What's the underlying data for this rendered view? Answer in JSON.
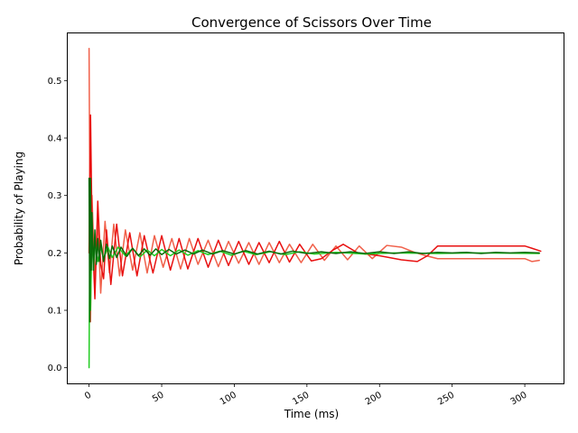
{
  "chart_data": {
    "type": "line",
    "title": "Convergence of Scissors Over Time",
    "xlabel": "Time (ms)",
    "ylabel": "Probability of Playing",
    "xlim": [
      -15,
      327
    ],
    "ylim": [
      -0.028,
      0.583
    ],
    "xticks": [
      0,
      50,
      100,
      150,
      200,
      250,
      300
    ],
    "xtick_labels": [
      "0",
      "50",
      "100",
      "150",
      "200",
      "250",
      "300"
    ],
    "xtick_rotation": 30,
    "yticks": [
      0.0,
      0.1,
      0.2,
      0.3,
      0.4,
      0.5
    ],
    "ytick_labels": [
      "0.0",
      "0.1",
      "0.2",
      "0.3",
      "0.4",
      "0.5"
    ],
    "grid": false,
    "legend": false,
    "series": [
      {
        "color": "#f0604a",
        "points": [
          [
            0,
            0.556
          ],
          [
            1,
            0.08
          ],
          [
            2,
            0.3
          ],
          [
            4,
            0.15
          ],
          [
            6,
            0.26
          ],
          [
            8,
            0.13
          ],
          [
            11,
            0.255
          ],
          [
            14,
            0.165
          ],
          [
            17,
            0.25
          ],
          [
            21,
            0.16
          ],
          [
            25,
            0.24
          ],
          [
            30,
            0.17
          ],
          [
            35,
            0.235
          ],
          [
            40,
            0.165
          ],
          [
            45,
            0.23
          ],
          [
            51,
            0.175
          ],
          [
            57,
            0.225
          ],
          [
            63,
            0.172
          ],
          [
            69,
            0.225
          ],
          [
            75,
            0.18
          ],
          [
            82,
            0.222
          ],
          [
            89,
            0.176
          ],
          [
            96,
            0.22
          ],
          [
            103,
            0.182
          ],
          [
            110,
            0.218
          ],
          [
            117,
            0.18
          ],
          [
            124,
            0.218
          ],
          [
            131,
            0.183
          ],
          [
            138,
            0.215
          ],
          [
            146,
            0.183
          ],
          [
            154,
            0.215
          ],
          [
            162,
            0.187
          ],
          [
            170,
            0.212
          ],
          [
            178,
            0.188
          ],
          [
            186,
            0.212
          ],
          [
            195,
            0.19
          ],
          [
            205,
            0.213
          ],
          [
            215,
            0.21
          ],
          [
            225,
            0.2
          ],
          [
            232,
            0.195
          ],
          [
            240,
            0.19
          ],
          [
            260,
            0.19
          ],
          [
            300,
            0.19
          ],
          [
            305,
            0.185
          ],
          [
            310,
            0.187
          ]
        ]
      },
      {
        "color": "#e81010",
        "points": [
          [
            0,
            0.2
          ],
          [
            1,
            0.44
          ],
          [
            2,
            0.25
          ],
          [
            4,
            0.12
          ],
          [
            6,
            0.29
          ],
          [
            8,
            0.18
          ],
          [
            10,
            0.155
          ],
          [
            12,
            0.24
          ],
          [
            15,
            0.145
          ],
          [
            19,
            0.25
          ],
          [
            23,
            0.16
          ],
          [
            28,
            0.235
          ],
          [
            33,
            0.16
          ],
          [
            38,
            0.23
          ],
          [
            44,
            0.165
          ],
          [
            50,
            0.23
          ],
          [
            56,
            0.17
          ],
          [
            62,
            0.225
          ],
          [
            68,
            0.172
          ],
          [
            75,
            0.225
          ],
          [
            82,
            0.175
          ],
          [
            89,
            0.222
          ],
          [
            96,
            0.178
          ],
          [
            103,
            0.22
          ],
          [
            110,
            0.18
          ],
          [
            117,
            0.218
          ],
          [
            124,
            0.183
          ],
          [
            131,
            0.22
          ],
          [
            138,
            0.184
          ],
          [
            145,
            0.215
          ],
          [
            153,
            0.186
          ],
          [
            160,
            0.19
          ],
          [
            168,
            0.205
          ],
          [
            175,
            0.215
          ],
          [
            185,
            0.2
          ],
          [
            200,
            0.195
          ],
          [
            215,
            0.188
          ],
          [
            226,
            0.185
          ],
          [
            233,
            0.195
          ],
          [
            240,
            0.212
          ],
          [
            250,
            0.212
          ],
          [
            300,
            0.212
          ],
          [
            305,
            0.208
          ],
          [
            311,
            0.203
          ]
        ]
      },
      {
        "color": "#22cc22",
        "points": [
          [
            0,
            0.0
          ],
          [
            0.5,
            0.27
          ],
          [
            1,
            0.1
          ],
          [
            2,
            0.24
          ],
          [
            3,
            0.17
          ],
          [
            4,
            0.22
          ],
          [
            6,
            0.185
          ],
          [
            8,
            0.21
          ],
          [
            10,
            0.19
          ],
          [
            13,
            0.21
          ],
          [
            16,
            0.192
          ],
          [
            20,
            0.21
          ],
          [
            25,
            0.195
          ],
          [
            30,
            0.208
          ],
          [
            35,
            0.193
          ],
          [
            40,
            0.205
          ],
          [
            45,
            0.195
          ],
          [
            50,
            0.206
          ],
          [
            56,
            0.195
          ],
          [
            62,
            0.205
          ],
          [
            68,
            0.196
          ],
          [
            75,
            0.204
          ],
          [
            82,
            0.197
          ],
          [
            90,
            0.203
          ],
          [
            98,
            0.196
          ],
          [
            106,
            0.203
          ],
          [
            115,
            0.197
          ],
          [
            125,
            0.202
          ],
          [
            135,
            0.197
          ],
          [
            145,
            0.202
          ],
          [
            155,
            0.198
          ],
          [
            170,
            0.201
          ],
          [
            190,
            0.198
          ],
          [
            210,
            0.2
          ],
          [
            240,
            0.199
          ],
          [
            270,
            0.2
          ],
          [
            310,
            0.199
          ]
        ]
      },
      {
        "color": "#0a6b0a",
        "points": [
          [
            0,
            0.33
          ],
          [
            0.5,
            0.08
          ],
          [
            1,
            0.33
          ],
          [
            1.5,
            0.17
          ],
          [
            2,
            0.27
          ],
          [
            3,
            0.17
          ],
          [
            4,
            0.24
          ],
          [
            5,
            0.18
          ],
          [
            6,
            0.225
          ],
          [
            7,
            0.185
          ],
          [
            8,
            0.222
          ],
          [
            10,
            0.185
          ],
          [
            12,
            0.215
          ],
          [
            14,
            0.19
          ],
          [
            16,
            0.212
          ],
          [
            19,
            0.192
          ],
          [
            22,
            0.21
          ],
          [
            26,
            0.194
          ],
          [
            30,
            0.208
          ],
          [
            34,
            0.195
          ],
          [
            38,
            0.207
          ],
          [
            42,
            0.196
          ],
          [
            46,
            0.207
          ],
          [
            50,
            0.197
          ],
          [
            55,
            0.206
          ],
          [
            60,
            0.198
          ],
          [
            66,
            0.205
          ],
          [
            72,
            0.198
          ],
          [
            78,
            0.205
          ],
          [
            85,
            0.198
          ],
          [
            92,
            0.204
          ],
          [
            100,
            0.198
          ],
          [
            108,
            0.204
          ],
          [
            116,
            0.198
          ],
          [
            124,
            0.203
          ],
          [
            132,
            0.198
          ],
          [
            140,
            0.203
          ],
          [
            150,
            0.199
          ],
          [
            160,
            0.202
          ],
          [
            170,
            0.199
          ],
          [
            180,
            0.202
          ],
          [
            190,
            0.199
          ],
          [
            200,
            0.202
          ],
          [
            210,
            0.199
          ],
          [
            220,
            0.202
          ],
          [
            230,
            0.199
          ],
          [
            240,
            0.201
          ],
          [
            250,
            0.2
          ],
          [
            260,
            0.201
          ],
          [
            270,
            0.199
          ],
          [
            280,
            0.201
          ],
          [
            290,
            0.2
          ],
          [
            300,
            0.201
          ],
          [
            310,
            0.2
          ]
        ]
      }
    ]
  }
}
